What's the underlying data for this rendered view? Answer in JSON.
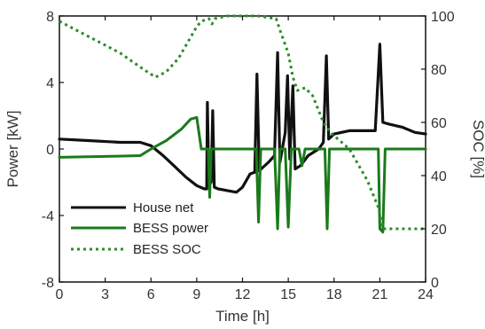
{
  "chart_data": {
    "type": "line",
    "title": "",
    "xlabel": "Time [h]",
    "ylabel_left": "Power [kW]",
    "ylabel_right": "SOC [%]",
    "xlim": [
      0,
      24
    ],
    "ylim_left": [
      -8,
      8
    ],
    "ylim_right": [
      0,
      100
    ],
    "xticks": [
      "0",
      "3",
      "6",
      "9",
      "12",
      "15",
      "18",
      "21",
      "24"
    ],
    "yticks_left": [
      "-8",
      "-4",
      "0",
      "4",
      "8"
    ],
    "yticks_right": [
      "0",
      "20",
      "40",
      "60",
      "80",
      "100"
    ],
    "grid": false,
    "legend_position": "bottom-left",
    "series": [
      {
        "name": "House net",
        "axis": "left",
        "style": "solid",
        "color": "#111111",
        "points": [
          [
            0,
            0.6
          ],
          [
            2,
            0.5
          ],
          [
            4,
            0.4
          ],
          [
            5.3,
            0.4
          ],
          [
            6,
            0.2
          ],
          [
            6.8,
            -0.4
          ],
          [
            7.5,
            -1.0
          ],
          [
            8.3,
            -1.7
          ],
          [
            9,
            -2.2
          ],
          [
            9.5,
            -2.4
          ],
          [
            9.65,
            -2.4
          ],
          [
            9.7,
            2.8
          ],
          [
            9.8,
            -2.2
          ],
          [
            9.95,
            -2.0
          ],
          [
            10.05,
            2.3
          ],
          [
            10.15,
            -2.3
          ],
          [
            10.4,
            -2.4
          ],
          [
            11,
            -2.5
          ],
          [
            11.6,
            -2.6
          ],
          [
            12,
            -2.3
          ],
          [
            12.5,
            -1.5
          ],
          [
            12.8,
            -1.4
          ],
          [
            12.95,
            4.5
          ],
          [
            13.1,
            -1.3
          ],
          [
            13.7,
            -0.8
          ],
          [
            14.1,
            -0.4
          ],
          [
            14.3,
            5.8
          ],
          [
            14.45,
            -0.8
          ],
          [
            14.8,
            1.0
          ],
          [
            14.95,
            4.4
          ],
          [
            15.1,
            -0.6
          ],
          [
            15.3,
            3.8
          ],
          [
            15.45,
            -1.2
          ],
          [
            15.8,
            -1.0
          ],
          [
            16.3,
            -0.4
          ],
          [
            17.0,
            0.0
          ],
          [
            17.3,
            0.4
          ],
          [
            17.5,
            5.6
          ],
          [
            17.65,
            0.6
          ],
          [
            18,
            0.9
          ],
          [
            19,
            1.1
          ],
          [
            20,
            1.1
          ],
          [
            20.7,
            1.1
          ],
          [
            21,
            6.3
          ],
          [
            21.2,
            1.6
          ],
          [
            21.6,
            1.5
          ],
          [
            22.5,
            1.3
          ],
          [
            23.3,
            1.0
          ],
          [
            24,
            0.9
          ]
        ]
      },
      {
        "name": "BESS power",
        "axis": "left",
        "style": "solid",
        "color": "#1a7a1a",
        "points": [
          [
            0,
            -0.5
          ],
          [
            3,
            -0.45
          ],
          [
            5.3,
            -0.4
          ],
          [
            6,
            0.0
          ],
          [
            7,
            0.5
          ],
          [
            8,
            1.2
          ],
          [
            8.6,
            1.8
          ],
          [
            9.0,
            1.9
          ],
          [
            9.3,
            0.0
          ],
          [
            9.75,
            0.0
          ],
          [
            9.85,
            -2.9
          ],
          [
            9.95,
            0.0
          ],
          [
            12.9,
            0.0
          ],
          [
            13.05,
            -4.4
          ],
          [
            13.2,
            0.0
          ],
          [
            14.1,
            0.0
          ],
          [
            14.3,
            -4.8
          ],
          [
            14.45,
            0.0
          ],
          [
            14.8,
            0.0
          ],
          [
            15.0,
            -4.7
          ],
          [
            15.2,
            0.0
          ],
          [
            15.7,
            0.0
          ],
          [
            15.9,
            -1.0
          ],
          [
            16.1,
            0.0
          ],
          [
            17.4,
            0.0
          ],
          [
            17.55,
            -4.8
          ],
          [
            17.7,
            0.0
          ],
          [
            20.9,
            0.0
          ],
          [
            21.0,
            -4.8
          ],
          [
            21.2,
            -5.0
          ],
          [
            21.35,
            0.0
          ],
          [
            22,
            0.0
          ],
          [
            24,
            0.0
          ]
        ]
      },
      {
        "name": "BESS SOC",
        "axis": "right",
        "style": "dotted",
        "color": "#2b8c2b",
        "points": [
          [
            0,
            98
          ],
          [
            2,
            92
          ],
          [
            4,
            86
          ],
          [
            5.5,
            80
          ],
          [
            6.3,
            77
          ],
          [
            7,
            79
          ],
          [
            7.8,
            84
          ],
          [
            8.5,
            91
          ],
          [
            9.0,
            96
          ],
          [
            9.3,
            98
          ],
          [
            9.8,
            99
          ],
          [
            10,
            97
          ],
          [
            10.2,
            99
          ],
          [
            11,
            100
          ],
          [
            13,
            100
          ],
          [
            14.2,
            99
          ],
          [
            14.5,
            94
          ],
          [
            15.0,
            86
          ],
          [
            15.3,
            77
          ],
          [
            15.6,
            72
          ],
          [
            16.1,
            73
          ],
          [
            16.6,
            70
          ],
          [
            17.3,
            60
          ],
          [
            17.8,
            56
          ],
          [
            19,
            50
          ],
          [
            20.2,
            38
          ],
          [
            20.9,
            28
          ],
          [
            21.2,
            20
          ],
          [
            22,
            20
          ],
          [
            24,
            20
          ]
        ]
      }
    ]
  }
}
